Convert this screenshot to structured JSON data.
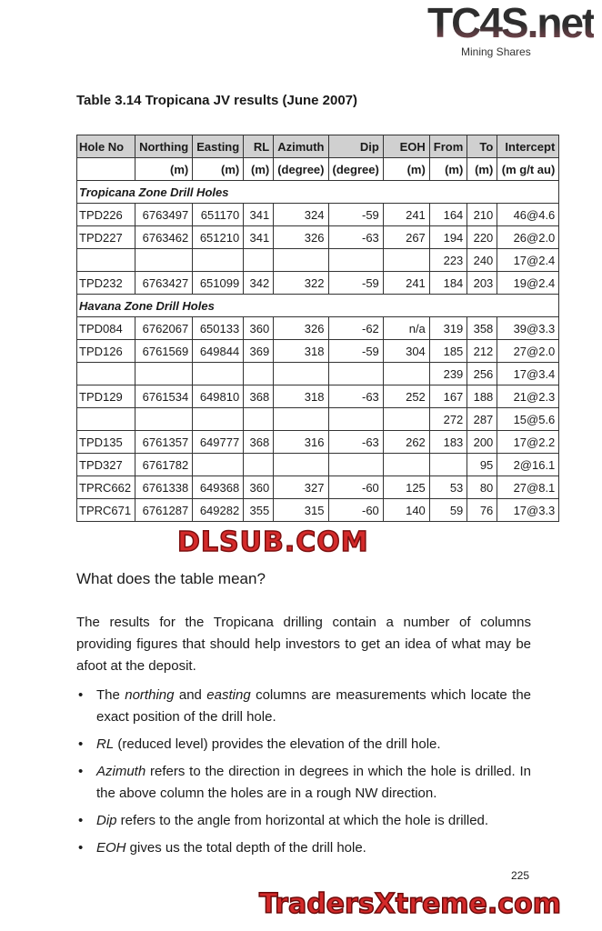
{
  "logo": {
    "text": "TC4S.net",
    "sub": "Mining Shares"
  },
  "title": "Table 3.14 Tropicana JV results (June 2007)",
  "table": {
    "headers": [
      "Hole No",
      "Northing",
      "Easting",
      "RL",
      "Azimuth",
      "Dip",
      "EOH",
      "From",
      "To",
      "Intercept"
    ],
    "units": [
      "",
      "(m)",
      "(m)",
      "(m)",
      "(degree)",
      "(degree)",
      "(m)",
      "(m)",
      "(m)",
      "(m g/t au)"
    ],
    "sections": [
      {
        "label": "Tropicana Zone Drill Holes",
        "rows": [
          [
            "TPD226",
            "6763497",
            "651170",
            "341",
            "324",
            "-59",
            "241",
            "164",
            "210",
            "46@4.6"
          ],
          [
            "TPD227",
            "6763462",
            "651210",
            "341",
            "326",
            "-63",
            "267",
            "194",
            "220",
            "26@2.0"
          ],
          [
            "",
            "",
            "",
            "",
            "",
            "",
            "",
            "223",
            "240",
            "17@2.4"
          ],
          [
            "TPD232",
            "6763427",
            "651099",
            "342",
            "322",
            "-59",
            "241",
            "184",
            "203",
            "19@2.4"
          ]
        ]
      },
      {
        "label": "Havana Zone Drill Holes",
        "rows": [
          [
            "TPD084",
            "6762067",
            "650133",
            "360",
            "326",
            "-62",
            "n/a",
            "319",
            "358",
            "39@3.3"
          ],
          [
            "TPD126",
            "6761569",
            "649844",
            "369",
            "318",
            "-59",
            "304",
            "185",
            "212",
            "27@2.0"
          ],
          [
            "",
            "",
            "",
            "",
            "",
            "",
            "",
            "239",
            "256",
            "17@3.4"
          ],
          [
            "TPD129",
            "6761534",
            "649810",
            "368",
            "318",
            "-63",
            "252",
            "167",
            "188",
            "21@2.3"
          ],
          [
            "",
            "",
            "",
            "",
            "",
            "",
            "",
            "272",
            "287",
            "15@5.6"
          ],
          [
            "TPD135",
            "6761357",
            "649777",
            "368",
            "316",
            "-63",
            "262",
            "183",
            "200",
            "17@2.2"
          ],
          [
            "TPD327",
            "6761782",
            "",
            "",
            "",
            "",
            "",
            "",
            "95",
            "2@16.1"
          ],
          [
            "TPRC662",
            "6761338",
            "649368",
            "360",
            "327",
            "-60",
            "125",
            "53",
            "80",
            "27@8.1"
          ],
          [
            "TPRC671",
            "6761287",
            "649282",
            "355",
            "315",
            "-60",
            "140",
            "59",
            "76",
            "17@3.3"
          ]
        ]
      }
    ]
  },
  "watermark": "DLSUB.COM",
  "subheading": "What does the table mean?",
  "paragraph": "The results for the Tropicana drilling contain a number of columns providing figures that should help investors to get an idea of what may be afoot at the deposit.",
  "bullets": [
    {
      "pre": "The ",
      "em1": "northing",
      "mid": " and ",
      "em2": "easting",
      "post": " columns are measurements which locate the exact position of the drill hole."
    },
    {
      "em1": "RL",
      "post": " (reduced level) provides the elevation of the drill hole."
    },
    {
      "em1": "Azimuth",
      "post": " refers to the direction in degrees in which the hole is drilled. In the above column the holes are in a rough NW direction."
    },
    {
      "em1": "Dip",
      "post": " refers to the angle from horizontal at which the hole is drilled."
    },
    {
      "em1": "EOH",
      "post": " gives us the total depth of the drill hole."
    }
  ],
  "page_number": "225",
  "footer_watermark": "TradersXtreme.com"
}
